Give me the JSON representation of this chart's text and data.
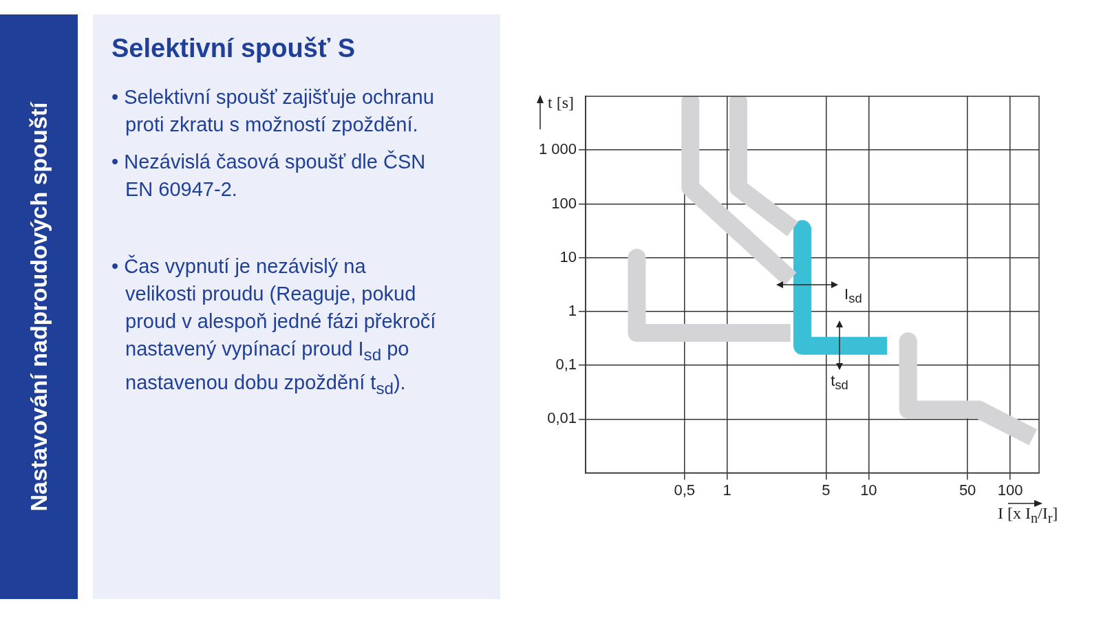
{
  "chart_data": {
    "type": "line",
    "title": "Nastavování nadproudových spouští",
    "subtitle": "Selektivní spoušť S",
    "xlabel": "I [x I$_{n}$/I$_{r}$]",
    "ylabel": "t [s]",
    "log": "xy",
    "grid": true,
    "legend": false,
    "marker": "none",
    "xlim": [
      0.1,
      160
    ],
    "ylim": [
      0.001,
      10000
    ],
    "xticks": [
      {
        "value": 0.5,
        "label": "0,5"
      },
      {
        "value": 1,
        "label": "1"
      },
      {
        "value": 5,
        "label": "5"
      },
      {
        "value": 10,
        "label": "10"
      },
      {
        "value": 50,
        "label": "50"
      },
      {
        "value": 100,
        "label": "100"
      }
    ],
    "yticks": [
      {
        "value": 0.01,
        "label": "0,01"
      },
      {
        "value": 0.1,
        "label": "0,1"
      },
      {
        "value": 1,
        "label": "1"
      },
      {
        "value": 10,
        "label": "10"
      },
      {
        "value": 100,
        "label": "100"
      },
      {
        "value": 1000,
        "label": "1 000"
      }
    ],
    "series": [
      {
        "color": "#d4d4d6",
        "x": [
          0.55,
          0.55,
          2.8
        ],
        "values": [
          8000,
          200,
          4
        ]
      },
      {
        "color": "#d4d4d6",
        "x": [
          1.2,
          1.2,
          2.9
        ],
        "values": [
          8000,
          200,
          34
        ]
      },
      {
        "color": "#d4d4d6",
        "x": [
          0.23,
          0.23,
          2.8
        ],
        "values": [
          10,
          0.4,
          0.4
        ]
      },
      {
        "color": "#d4d4d6",
        "x": [
          19,
          19,
          60,
          145
        ],
        "values": [
          0.28,
          0.015,
          0.015,
          0.0046
        ]
      },
      {
        "color": "#3bbfd6",
        "x": [
          3.4,
          3.4,
          13.5
        ],
        "values": [
          34,
          0.23,
          0.23
        ]
      }
    ],
    "annotations": [
      "I$_{sd}$",
      "t$_{sd}$",
      "• Selektivní spoušť zajišťuje ochranu proti zkratu s možností zpoždění.",
      "• Nezávislá časová spoušť dle ČSN EN 60947-2.",
      "• Čas vypnutí je nezávislý na velikosti proudu (Reaguje, pokud proud v alespoň jedné fázi překročí nastavený vypínací proud I$_{sd}$ po nastavenou dobu zpoždění t$_{sd}$)."
    ]
  }
}
